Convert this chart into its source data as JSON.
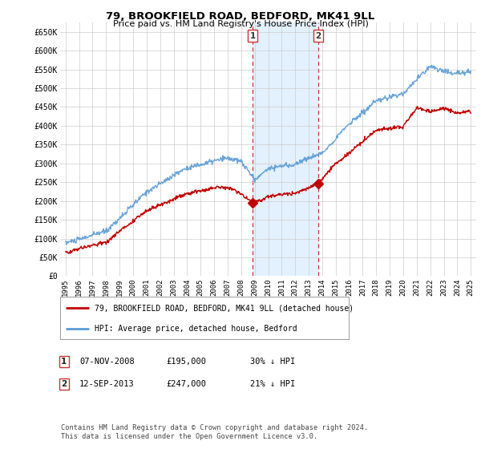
{
  "title": "79, BROOKFIELD ROAD, BEDFORD, MK41 9LL",
  "subtitle": "Price paid vs. HM Land Registry's House Price Index (HPI)",
  "ylim": [
    0,
    675000
  ],
  "yticks": [
    0,
    50000,
    100000,
    150000,
    200000,
    250000,
    300000,
    350000,
    400000,
    450000,
    500000,
    550000,
    600000,
    650000
  ],
  "ytick_labels": [
    "£0",
    "£50K",
    "£100K",
    "£150K",
    "£200K",
    "£250K",
    "£300K",
    "£350K",
    "£400K",
    "£450K",
    "£500K",
    "£550K",
    "£600K",
    "£650K"
  ],
  "hpi_color": "#5b9bd5",
  "price_color": "#c00000",
  "marker1_date": 2008.85,
  "marker1_price": 195000,
  "marker2_date": 2013.7,
  "marker2_price": 247000,
  "shade_color": "#ddeeff",
  "background_color": "#ffffff",
  "grid_color": "#cccccc",
  "legend_line1": "79, BROOKFIELD ROAD, BEDFORD, MK41 9LL (detached house)",
  "legend_line2": "HPI: Average price, detached house, Bedford",
  "ann1_date": "07-NOV-2008",
  "ann1_price": "£195,000",
  "ann1_hpi": "30% ↓ HPI",
  "ann2_date": "12-SEP-2013",
  "ann2_price": "£247,000",
  "ann2_hpi": "21% ↓ HPI",
  "footnote": "Contains HM Land Registry data © Crown copyright and database right 2024.\nThis data is licensed under the Open Government Licence v3.0."
}
